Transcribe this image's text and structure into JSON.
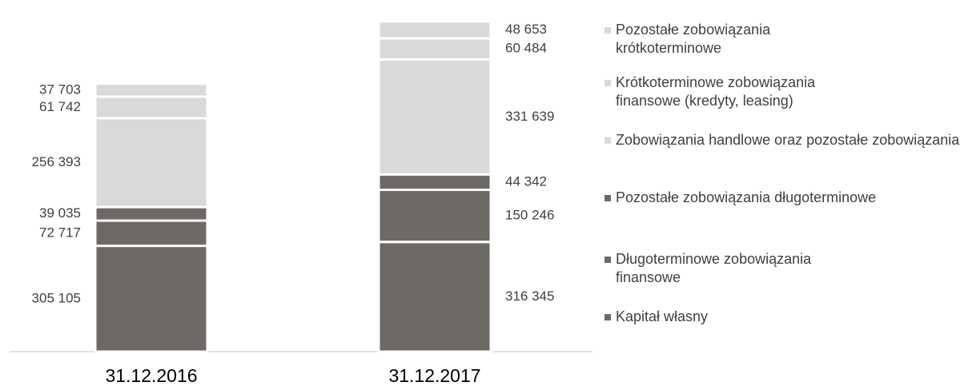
{
  "chart_data": {
    "type": "stacked_bar",
    "categories": [
      "31.12.2016",
      "31.12.2017"
    ],
    "series": [
      {
        "name": "Kapitał własny",
        "color": "#6d6a65",
        "values": [
          305105,
          316345
        ],
        "value_labels": [
          "305 105",
          "316 345"
        ]
      },
      {
        "name": "Długoterminowe zobowiązania finansowe",
        "color": "#6d6a65",
        "values": [
          72717,
          150246
        ],
        "value_labels": [
          "72 717",
          "150 246"
        ]
      },
      {
        "name": "Pozostałe zobowiązania długoterminowe",
        "color": "#6d6a65",
        "values": [
          39035,
          44342
        ],
        "value_labels": [
          "39 035",
          "44 342"
        ]
      },
      {
        "name": "Zobowiązania handlowe oraz pozostałe zobowiązania",
        "color": "#d9d9d9",
        "values": [
          256393,
          331639
        ],
        "value_labels": [
          "256 393",
          "331 639"
        ]
      },
      {
        "name": "Krótkoterminowe zobowiązania finansowe (kredyty, leasing)",
        "color": "#d9d9d9",
        "values": [
          61742,
          60484
        ],
        "value_labels": [
          "61 742",
          "60 484"
        ]
      },
      {
        "name": "Pozostałe zobowiązania krótkoterminowe",
        "color": "#d9d9d9",
        "values": [
          37703,
          48653
        ],
        "value_labels": [
          "37 703",
          "48 653"
        ]
      }
    ],
    "ylim": [
      0,
      1000000
    ],
    "legend": "right"
  }
}
